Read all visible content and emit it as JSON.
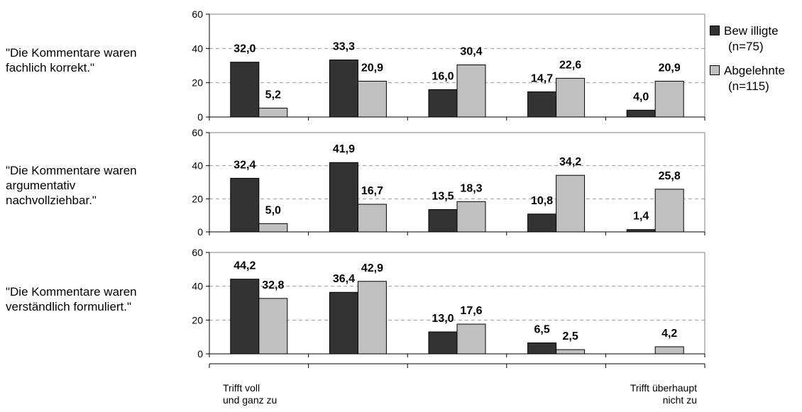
{
  "chart_data": {
    "type": "bar",
    "categories": [
      "Trifft voll\nund ganz zu",
      "",
      "",
      "",
      "Trifft überhaupt\nnicht zu"
    ],
    "ylim": [
      0,
      60
    ],
    "yticks": [
      0,
      20,
      40,
      60
    ],
    "grid": true,
    "legend_position": "right",
    "colors": {
      "bewilligte": "#333333",
      "abgelehnte": "#c0c0c0"
    },
    "legend": {
      "bewilligte": {
        "name": "Bew illigte",
        "n": "(n=75)"
      },
      "abgelehnte": {
        "name": "Abgelehnte",
        "n": "(n=115)"
      }
    },
    "panels": [
      {
        "label": "\"Die Kommentare waren fachlich korrekt.\"",
        "series": [
          {
            "name": "Bew illigte",
            "values": [
              32.0,
              33.3,
              16.0,
              14.7,
              4.0
            ],
            "labels": [
              "32,0",
              "33,3",
              "16,0",
              "14,7",
              "4,0"
            ]
          },
          {
            "name": "Abgelehnte",
            "values": [
              5.2,
              20.9,
              30.4,
              22.6,
              20.9
            ],
            "labels": [
              "5,2",
              "20,9",
              "30,4",
              "22,6",
              "20,9"
            ]
          }
        ]
      },
      {
        "label": "\"Die Kommentare waren argumentativ nachvollziehbar.\"",
        "series": [
          {
            "name": "Bew illigte",
            "values": [
              32.4,
              41.9,
              13.5,
              10.8,
              1.4
            ],
            "labels": [
              "32,4",
              "41,9",
              "13,5",
              "10,8",
              "1,4"
            ]
          },
          {
            "name": "Abgelehnte",
            "values": [
              5.0,
              16.7,
              18.3,
              34.2,
              25.8
            ],
            "labels": [
              "5,0",
              "16,7",
              "18,3",
              "34,2",
              "25,8"
            ]
          }
        ]
      },
      {
        "label": "\"Die Kommentare waren verständlich formuliert.\"",
        "series": [
          {
            "name": "Bew illigte",
            "values": [
              44.2,
              36.4,
              13.0,
              6.5,
              0
            ],
            "labels": [
              "44,2",
              "36,4",
              "13,0",
              "6,5",
              ""
            ]
          },
          {
            "name": "Abgelehnte",
            "values": [
              32.8,
              42.9,
              17.6,
              2.5,
              4.2
            ],
            "labels": [
              "32,8",
              "42,9",
              "17,6",
              "2,5",
              "4,2"
            ]
          }
        ]
      }
    ]
  }
}
